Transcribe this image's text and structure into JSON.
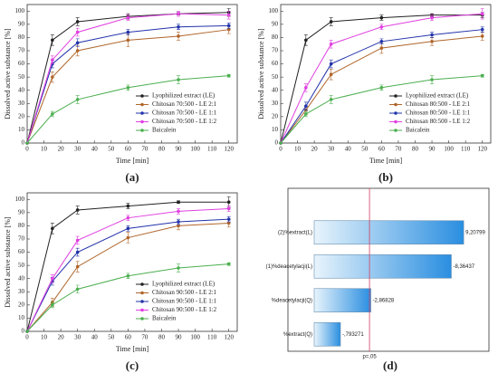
{
  "chart_data": [
    {
      "type": "line",
      "label": "(a)",
      "xlabel": "Time [min]",
      "ylabel": "Dissolved active substance [%]",
      "x": [
        0,
        15,
        30,
        60,
        90,
        120
      ],
      "xlim": [
        0,
        125
      ],
      "ylim": [
        0,
        105
      ],
      "xticks": [
        0,
        10,
        20,
        30,
        40,
        50,
        60,
        70,
        80,
        90,
        100,
        110,
        120
      ],
      "yticks": [
        0,
        10,
        20,
        30,
        40,
        50,
        60,
        70,
        80,
        90,
        100
      ],
      "series": [
        {
          "name": "Lyophilized extract (LE)",
          "color": "#222222",
          "values": [
            0,
            78,
            92,
            96,
            98,
            99
          ],
          "errors": [
            0,
            4,
            3,
            2,
            1,
            3
          ]
        },
        {
          "name": "Chitosan 70:500 - LE 2:1",
          "color": "#b0652a",
          "values": [
            0,
            50,
            70,
            78,
            81,
            86
          ],
          "errors": [
            0,
            4,
            4,
            5,
            3,
            3
          ]
        },
        {
          "name": "Chitosan 70:500 - LE 1:1",
          "color": "#2233aa",
          "values": [
            0,
            60,
            76,
            84,
            88,
            89
          ],
          "errors": [
            0,
            3,
            3,
            2,
            2,
            2
          ]
        },
        {
          "name": "Chitosan 70:500 - LE 1:2",
          "color": "#e040e0",
          "values": [
            0,
            63,
            84,
            95,
            98,
            97
          ],
          "errors": [
            0,
            3,
            3,
            2,
            2,
            3
          ]
        },
        {
          "name": "Baicalein",
          "color": "#4caf50",
          "values": [
            0,
            22,
            33,
            42,
            48,
            51
          ],
          "errors": [
            0,
            2,
            3,
            2,
            3,
            1
          ]
        }
      ]
    },
    {
      "type": "line",
      "label": "(b)",
      "xlabel": "Time [min]",
      "ylabel": "Dissolved active substance [%]",
      "x": [
        0,
        15,
        30,
        60,
        90,
        120
      ],
      "xlim": [
        0,
        125
      ],
      "ylim": [
        0,
        105
      ],
      "xticks": [
        0,
        10,
        20,
        30,
        40,
        50,
        60,
        70,
        80,
        90,
        100,
        110,
        120
      ],
      "yticks": [
        0,
        10,
        20,
        30,
        40,
        50,
        60,
        70,
        80,
        90,
        100
      ],
      "series": [
        {
          "name": "Lyophilized extract (LE)",
          "color": "#222222",
          "values": [
            0,
            78,
            92,
            95,
            97,
            97
          ],
          "errors": [
            0,
            4,
            3,
            2,
            1,
            2
          ]
        },
        {
          "name": "Chitosan 80:500 - LE 2:1",
          "color": "#b0652a",
          "values": [
            0,
            25,
            52,
            72,
            77,
            81
          ],
          "errors": [
            0,
            3,
            4,
            4,
            3,
            3
          ]
        },
        {
          "name": "Chitosan 80:500 - LE 1:1",
          "color": "#2233aa",
          "values": [
            0,
            28,
            60,
            77,
            82,
            86
          ],
          "errors": [
            0,
            3,
            3,
            2,
            2,
            2
          ]
        },
        {
          "name": "Chitosan 80:500 - LE 1:2",
          "color": "#e040e0",
          "values": [
            0,
            42,
            75,
            88,
            95,
            98
          ],
          "errors": [
            0,
            3,
            3,
            2,
            2,
            4
          ]
        },
        {
          "name": "Baicalein",
          "color": "#4caf50",
          "values": [
            0,
            22,
            33,
            42,
            48,
            51
          ],
          "errors": [
            0,
            2,
            3,
            2,
            3,
            1
          ]
        }
      ]
    },
    {
      "type": "line",
      "label": "(c)",
      "xlabel": "Time [min]",
      "ylabel": "Dissolved active substance [%]",
      "x": [
        0,
        15,
        30,
        60,
        90,
        120
      ],
      "xlim": [
        0,
        125
      ],
      "ylim": [
        0,
        105
      ],
      "xticks": [
        0,
        10,
        20,
        30,
        40,
        50,
        60,
        70,
        80,
        90,
        100,
        110,
        120
      ],
      "yticks": [
        0,
        10,
        20,
        30,
        40,
        50,
        60,
        70,
        80,
        90,
        100
      ],
      "series": [
        {
          "name": "Lyophilized extract (LE)",
          "color": "#222222",
          "values": [
            0,
            78,
            92,
            95,
            98,
            98
          ],
          "errors": [
            0,
            4,
            3,
            2,
            1,
            4
          ]
        },
        {
          "name": "Chitosan 90:500 - LE 2:1",
          "color": "#b0652a",
          "values": [
            0,
            22,
            49,
            71,
            80,
            82
          ],
          "errors": [
            0,
            3,
            4,
            4,
            3,
            3
          ]
        },
        {
          "name": "Chitosan 90:500 - LE 1:1",
          "color": "#2233aa",
          "values": [
            0,
            38,
            60,
            78,
            83,
            85
          ],
          "errors": [
            0,
            3,
            3,
            2,
            2,
            2
          ]
        },
        {
          "name": "Chitosan 90:500 - LE 1:2",
          "color": "#e040e0",
          "values": [
            0,
            40,
            69,
            86,
            91,
            93
          ],
          "errors": [
            0,
            3,
            3,
            2,
            2,
            2
          ]
        },
        {
          "name": "Baicalein",
          "color": "#4caf50",
          "values": [
            0,
            20,
            32,
            42,
            48,
            51
          ],
          "errors": [
            0,
            2,
            3,
            2,
            3,
            1
          ]
        }
      ]
    },
    {
      "type": "pareto",
      "label": "(d)",
      "categories": [
        "(2)%extract(L)",
        "(1)%deacetylacji(L)",
        "%deacetylacji(Q)",
        "%extract(Q)"
      ],
      "values": [
        9.20799,
        -8.36437,
        -2.86828,
        -0.793271
      ],
      "value_labels": [
        "9,20799",
        "-8,36437",
        "-2,86828",
        "-,793271"
      ],
      "xlim": [
        -1,
        10.5
      ],
      "threshold": 2.776,
      "threshold_label": "p=,05",
      "threshold_color": "#d04060"
    }
  ]
}
